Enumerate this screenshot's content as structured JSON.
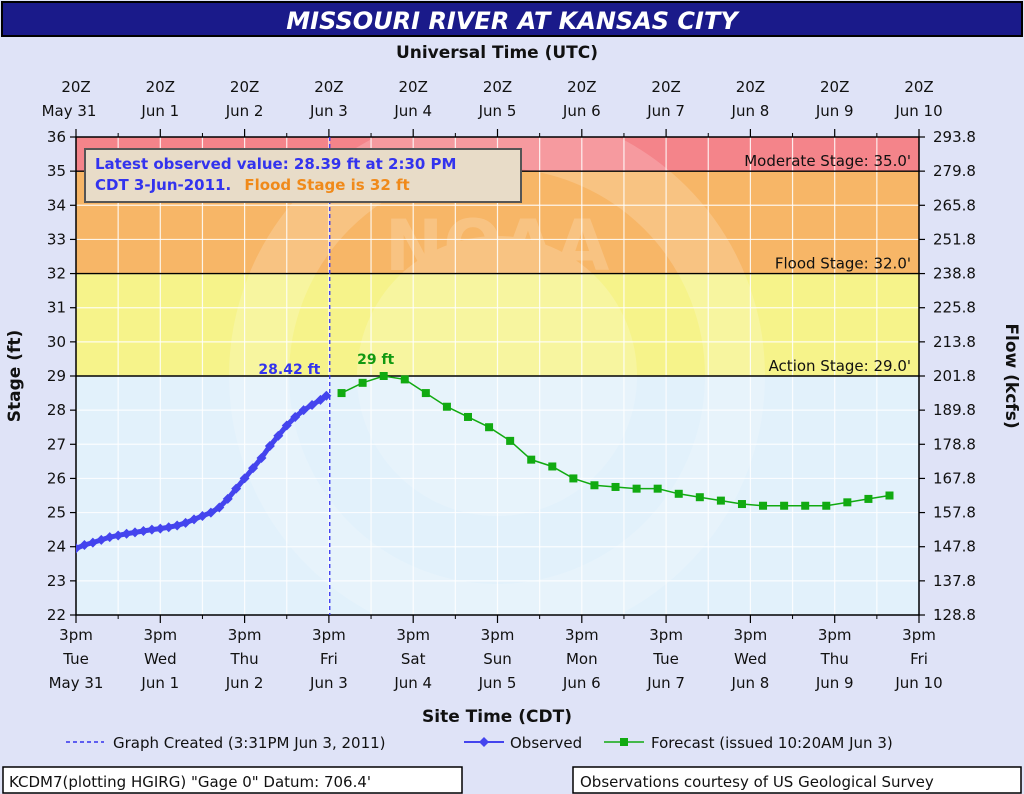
{
  "header": {
    "title": "MISSOURI RIVER AT KANSAS CITY",
    "top_axis_title": "Universal Time (UTC)",
    "bottom_axis_title": "Site Time (CDT)"
  },
  "colors": {
    "title_bar": "#1a1a8a",
    "background": "#dfe3f7",
    "observed": "#4444ee",
    "forecast": "#11aa11",
    "moderate_band": "#f4848a",
    "flood_band": "#f7b667",
    "action_band": "#f6f38a",
    "normal_band": "#e2f1fb"
  },
  "chart_data": {
    "type": "line",
    "ylabel": "Stage (ft)",
    "y2label": "Flow (kcfs)",
    "ylim": [
      22,
      36
    ],
    "y_ticks": [
      "22",
      "23",
      "24",
      "25",
      "26",
      "27",
      "28",
      "29",
      "30",
      "31",
      "32",
      "33",
      "34",
      "35",
      "36"
    ],
    "y2_ticks": [
      "128.8",
      "137.8",
      "147.8",
      "157.8",
      "167.8",
      "178.8",
      "189.8",
      "201.8",
      "213.8",
      "225.8",
      "238.8",
      "251.8",
      "265.8",
      "279.8",
      "293.8"
    ],
    "x_unit": "days from 3pm Tue May 31 (CDT)",
    "xlim": [
      0,
      10
    ],
    "x_ticks_bottom": [
      {
        "time": "3pm",
        "day": "Tue",
        "date": "May 31"
      },
      {
        "time": "3pm",
        "day": "Wed",
        "date": "Jun 1"
      },
      {
        "time": "3pm",
        "day": "Thu",
        "date": "Jun 2"
      },
      {
        "time": "3pm",
        "day": "Fri",
        "date": "Jun 3"
      },
      {
        "time": "3pm",
        "day": "Sat",
        "date": "Jun 4"
      },
      {
        "time": "3pm",
        "day": "Sun",
        "date": "Jun 5"
      },
      {
        "time": "3pm",
        "day": "Mon",
        "date": "Jun 6"
      },
      {
        "time": "3pm",
        "day": "Tue",
        "date": "Jun 7"
      },
      {
        "time": "3pm",
        "day": "Wed",
        "date": "Jun 8"
      },
      {
        "time": "3pm",
        "day": "Thu",
        "date": "Jun 9"
      },
      {
        "time": "3pm",
        "day": "Fri",
        "date": "Jun 10"
      }
    ],
    "x_ticks_top": [
      {
        "time": "20Z",
        "date": "May 31"
      },
      {
        "time": "20Z",
        "date": "Jun 1"
      },
      {
        "time": "20Z",
        "date": "Jun 2"
      },
      {
        "time": "20Z",
        "date": "Jun 3"
      },
      {
        "time": "20Z",
        "date": "Jun 4"
      },
      {
        "time": "20Z",
        "date": "Jun 5"
      },
      {
        "time": "20Z",
        "date": "Jun 6"
      },
      {
        "time": "20Z",
        "date": "Jun 7"
      },
      {
        "time": "20Z",
        "date": "Jun 8"
      },
      {
        "time": "20Z",
        "date": "Jun 9"
      },
      {
        "time": "20Z",
        "date": "Jun 10"
      }
    ],
    "bands": [
      {
        "from": 35,
        "to": 36,
        "name": "moderate"
      },
      {
        "from": 32,
        "to": 35,
        "name": "flood"
      },
      {
        "from": 29,
        "to": 32,
        "name": "action"
      },
      {
        "from": 22,
        "to": 29,
        "name": "normal"
      }
    ],
    "stage_lines": [
      {
        "value": 35,
        "label": "Moderate Stage: 35.0'"
      },
      {
        "value": 32,
        "label": "Flood Stage: 32.0'"
      },
      {
        "value": 29,
        "label": "Action Stage: 29.0'"
      }
    ],
    "graph_created_x": 3.01,
    "series": [
      {
        "name": "Observed",
        "x": [
          0.0,
          0.1,
          0.2,
          0.3,
          0.4,
          0.5,
          0.6,
          0.7,
          0.8,
          0.9,
          1.0,
          1.1,
          1.2,
          1.3,
          1.4,
          1.5,
          1.6,
          1.7,
          1.8,
          1.9,
          2.0,
          2.1,
          2.2,
          2.3,
          2.4,
          2.5,
          2.6,
          2.7,
          2.8,
          2.9,
          2.97
        ],
        "y": [
          23.95,
          24.05,
          24.12,
          24.2,
          24.28,
          24.33,
          24.38,
          24.42,
          24.46,
          24.5,
          24.53,
          24.57,
          24.62,
          24.7,
          24.8,
          24.9,
          25.0,
          25.15,
          25.4,
          25.7,
          26.0,
          26.3,
          26.6,
          26.95,
          27.25,
          27.55,
          27.8,
          28.0,
          28.15,
          28.3,
          28.42
        ]
      },
      {
        "name": "Forecast (issued 10:20AM Jun 3)",
        "x": [
          3.15,
          3.4,
          3.65,
          3.9,
          4.15,
          4.4,
          4.65,
          4.9,
          5.15,
          5.4,
          5.65,
          5.9,
          6.15,
          6.4,
          6.65,
          6.9,
          7.15,
          7.4,
          7.65,
          7.9,
          8.15,
          8.4,
          8.65,
          8.9,
          9.15,
          9.4,
          9.65
        ],
        "y": [
          28.5,
          28.8,
          29.0,
          28.9,
          28.5,
          28.1,
          27.8,
          27.5,
          27.1,
          26.55,
          26.35,
          26.0,
          25.8,
          25.75,
          25.7,
          25.7,
          25.55,
          25.45,
          25.35,
          25.25,
          25.2,
          25.2,
          25.2,
          25.2,
          25.3,
          25.4,
          25.5
        ]
      }
    ],
    "annotations": {
      "observed_peak": "28.42 ft",
      "forecast_peak": "29 ft",
      "info_line1": "Latest observed value: 28.39 ft at 2:30 PM",
      "info_line2_a": "CDT 3-Jun-2011.",
      "info_line2_b": "Flood Stage is 32 ft"
    },
    "legend": {
      "position": "bottom",
      "created": "Graph Created (3:31PM Jun 3, 2011)",
      "observed": "Observed",
      "forecast": "Forecast (issued 10:20AM Jun 3)"
    }
  },
  "footer": {
    "left": "KCDM7(plotting HGIRG) \"Gage 0\" Datum: 706.4'",
    "right": "Observations courtesy of US Geological Survey"
  }
}
